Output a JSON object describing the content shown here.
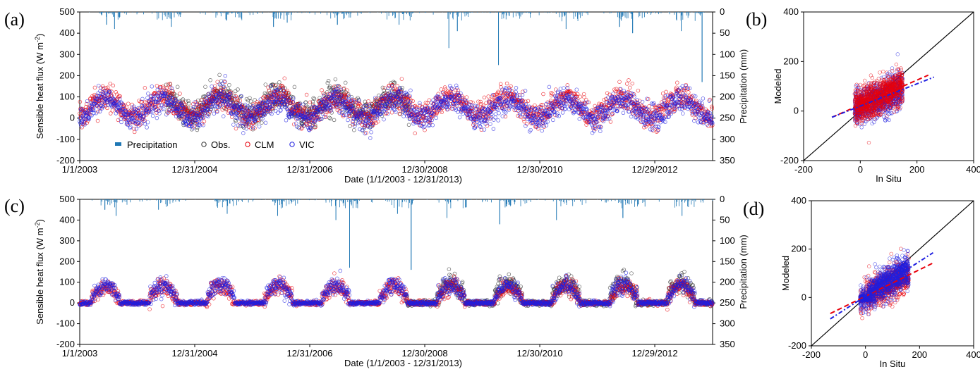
{
  "colors": {
    "precipitation": "#1f77b4",
    "obs": "#333333",
    "clm": "#e8000b",
    "vic": "#1f1fe0",
    "one_to_one": "#000000"
  },
  "legend": {
    "precipitation": "Precipitation",
    "obs": "Obs.",
    "clm": "CLM",
    "vic": "VIC"
  },
  "chart_data": [
    {
      "panel": "(a)",
      "type": "scatter",
      "xlabel": "Date (1/1/2003 - 12/31/2013)",
      "ylabel": "Sensible heat flux (W m",
      "ylabel_sup": "-2",
      "ylabel_close": ")",
      "y2label": "Precipitation (mm)",
      "xlim": [
        "2003-01-01",
        "2013-12-31"
      ],
      "ylim": [
        -200,
        500
      ],
      "y2lim": [
        0,
        350
      ],
      "y2_inverted": true,
      "x_ticks": [
        "1/1/2003",
        "12/31/2004",
        "12/31/2006",
        "12/30/2008",
        "12/30/2010",
        "12/29/2012"
      ],
      "y_ticks": [
        -200,
        -100,
        0,
        100,
        200,
        300,
        400,
        500
      ],
      "y2_ticks": [
        0,
        50,
        100,
        150,
        200,
        250,
        300,
        350
      ],
      "series": [
        {
          "name": "Obs.",
          "seasonal": {
            "mean": 60,
            "amp": 50,
            "noise": 35,
            "start": "2004-07-01",
            "end": "2008-09-30"
          }
        },
        {
          "name": "CLM",
          "seasonal": {
            "mean": 55,
            "amp": 45,
            "noise": 30,
            "start": "2003-01-01",
            "end": "2013-12-31"
          }
        },
        {
          "name": "VIC",
          "seasonal": {
            "mean": 45,
            "amp": 45,
            "noise": 30,
            "start": "2003-01-01",
            "end": "2013-12-31"
          }
        }
      ],
      "precip_peaks": [
        {
          "date": "2003-06-20",
          "mm": 30
        },
        {
          "date": "2003-08-10",
          "mm": 40
        },
        {
          "date": "2004-08-05",
          "mm": 35
        },
        {
          "date": "2005-07-20",
          "mm": 20
        },
        {
          "date": "2006-05-15",
          "mm": 35
        },
        {
          "date": "2006-08-10",
          "mm": 25
        },
        {
          "date": "2007-06-25",
          "mm": 30
        },
        {
          "date": "2008-07-20",
          "mm": 30
        },
        {
          "date": "2009-06-01",
          "mm": 85
        },
        {
          "date": "2009-07-25",
          "mm": 45
        },
        {
          "date": "2010-04-12",
          "mm": 125
        },
        {
          "date": "2011-06-15",
          "mm": 40
        },
        {
          "date": "2012-05-20",
          "mm": 35
        },
        {
          "date": "2012-08-10",
          "mm": 50
        },
        {
          "date": "2013-06-15",
          "mm": 45
        },
        {
          "date": "2013-10-25",
          "mm": 165
        }
      ]
    },
    {
      "panel": "(b)",
      "type": "scatter",
      "xlabel": "In Situ",
      "ylabel": "Modeled",
      "xlim": [
        -200,
        400
      ],
      "ylim": [
        -200,
        400
      ],
      "x_ticks": [
        -200,
        0,
        200,
        400
      ],
      "y_ticks": [
        -200,
        0,
        200,
        400
      ],
      "cloud": {
        "x_range": [
          -20,
          150
        ],
        "y_center": 60,
        "y_spread": 70
      },
      "fit_lines": [
        {
          "name": "CLM",
          "slope": 0.5,
          "intercept": 25,
          "x_range": [
            -100,
            240
          ]
        },
        {
          "name": "VIC",
          "slope": 0.45,
          "intercept": 20,
          "x_range": [
            -100,
            260
          ]
        }
      ]
    },
    {
      "panel": "(c)",
      "type": "scatter",
      "xlabel": "Date (1/1/2003  -  12/31/2013)",
      "ylabel": "Sensible heat flux (W m",
      "ylabel_sup": "-2",
      "ylabel_close": ")",
      "y2label": "Precipitation (mm)",
      "xlim": [
        "2003-01-01",
        "2013-12-31"
      ],
      "ylim": [
        -200,
        500
      ],
      "y2lim": [
        0,
        350
      ],
      "y2_inverted": true,
      "x_ticks": [
        "1/1/2003",
        "12/31/2004",
        "12/31/2006",
        "12/30/2008",
        "12/30/2010",
        "12/29/2012"
      ],
      "y_ticks": [
        -200,
        -100,
        0,
        100,
        200,
        300,
        400,
        500
      ],
      "y2_ticks": [
        0,
        50,
        100,
        150,
        200,
        250,
        300,
        350
      ],
      "series": [
        {
          "name": "Obs.",
          "seasonal": {
            "mean": 60,
            "amp": 75,
            "noise": 25,
            "start": "2008-09-01",
            "end": "2013-12-31"
          }
        },
        {
          "name": "CLM",
          "seasonal": {
            "mean": 40,
            "amp": 65,
            "noise": 20,
            "start": "2003-01-01",
            "end": "2013-12-31"
          }
        },
        {
          "name": "VIC",
          "seasonal": {
            "mean": 45,
            "amp": 70,
            "noise": 20,
            "start": "2003-01-01",
            "end": "2013-12-31"
          }
        }
      ],
      "precip_peaks": [
        {
          "date": "2003-06-10",
          "mm": 25
        },
        {
          "date": "2003-08-20",
          "mm": 40
        },
        {
          "date": "2004-05-15",
          "mm": 25
        },
        {
          "date": "2005-07-25",
          "mm": 35
        },
        {
          "date": "2006-06-10",
          "mm": 40
        },
        {
          "date": "2007-06-15",
          "mm": 50
        },
        {
          "date": "2007-09-10",
          "mm": 165
        },
        {
          "date": "2008-07-10",
          "mm": 35
        },
        {
          "date": "2008-10-05",
          "mm": 170
        },
        {
          "date": "2009-05-20",
          "mm": 45
        },
        {
          "date": "2010-04-20",
          "mm": 60
        },
        {
          "date": "2011-04-15",
          "mm": 50
        },
        {
          "date": "2012-06-10",
          "mm": 45
        },
        {
          "date": "2013-06-20",
          "mm": 40
        }
      ]
    },
    {
      "panel": "(d)",
      "type": "scatter",
      "xlabel": "In Situ",
      "ylabel": "Modeled",
      "xlim": [
        -200,
        400
      ],
      "ylim": [
        -200,
        400
      ],
      "x_ticks": [
        -200,
        0,
        200,
        400
      ],
      "y_ticks": [
        -200,
        0,
        200,
        400
      ],
      "cloud": {
        "x_range": [
          -20,
          160
        ],
        "y_center": 50,
        "y_spread": 65
      },
      "fit_lines": [
        {
          "name": "CLM",
          "slope": 0.55,
          "intercept": 5,
          "x_range": [
            -130,
            250
          ]
        },
        {
          "name": "VIC",
          "slope": 0.72,
          "intercept": 5,
          "x_range": [
            -130,
            250
          ]
        }
      ]
    }
  ]
}
